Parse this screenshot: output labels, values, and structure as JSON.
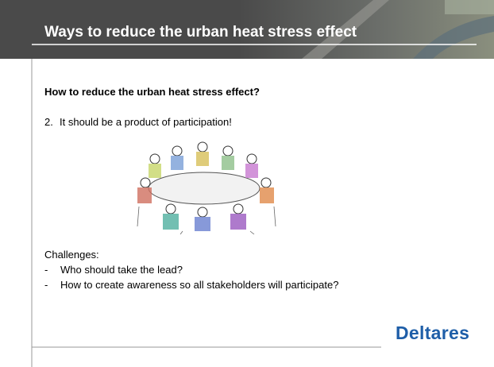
{
  "header": {
    "title": "Ways to reduce the urban heat stress effect"
  },
  "body": {
    "heading": "How to reduce the urban heat stress effect?",
    "point": {
      "number": "2.",
      "text": "It should be a product of participation!"
    }
  },
  "challenges": {
    "title": "Challenges:",
    "items": [
      {
        "bullet": "-",
        "text": "Who should take the lead?"
      },
      {
        "bullet": "-",
        "text": "How to create awareness so all stakeholders will participate?"
      }
    ]
  },
  "footer": {
    "logo": "Deltares"
  }
}
